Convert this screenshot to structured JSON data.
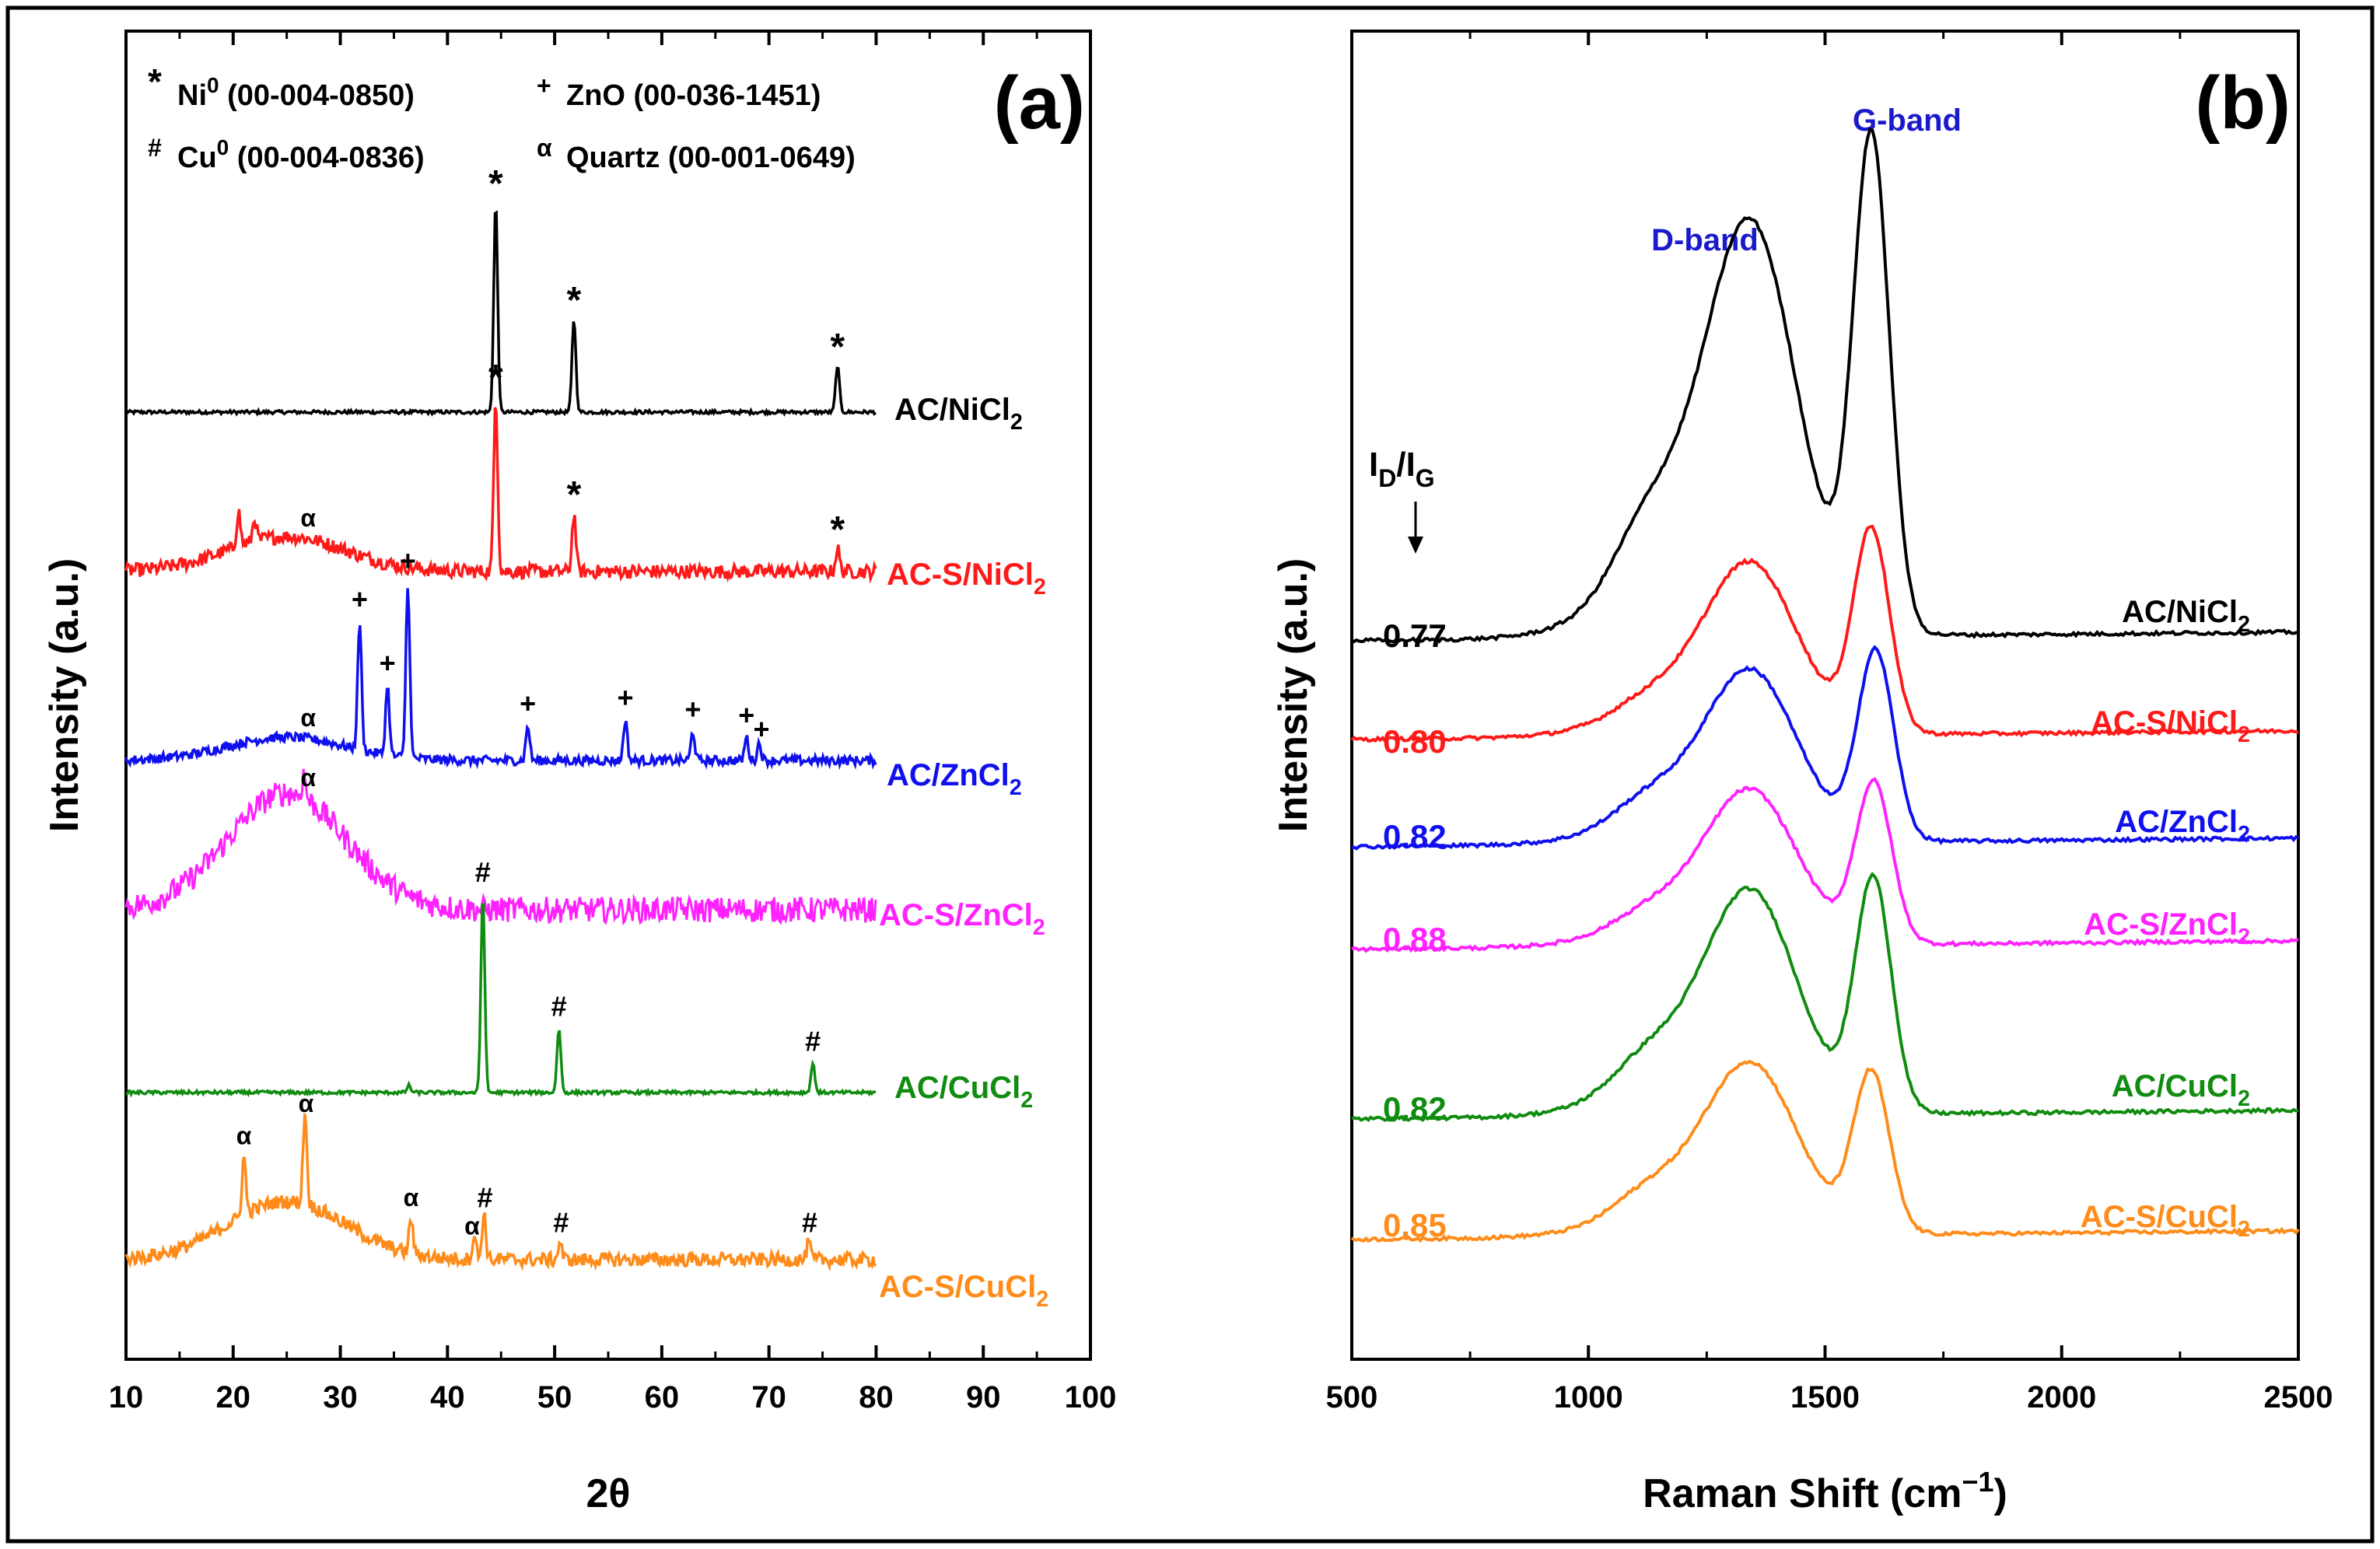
{
  "colors": {
    "black": "#000000",
    "red": "#ff1a1a",
    "blue": "#1010ee",
    "magenta": "#ff22ff",
    "green": "#108c10",
    "orange": "#ff8c1a",
    "bandLabel": "#1a1acc"
  },
  "chart_data": [
    {
      "type": "line",
      "panel_label": "(a)",
      "xlabel": "2θ",
      "ylabel": "Intensity (a.u.)",
      "xlim": [
        10,
        100
      ],
      "xticks": [
        "10",
        "20",
        "30",
        "40",
        "50",
        "60",
        "70",
        "80",
        "90",
        "100"
      ],
      "legend": [
        {
          "symbol": "*",
          "sup": "",
          "name": "Ni",
          "name_sup": "0",
          "ref": "(00-004-0850)"
        },
        {
          "symbol": "+",
          "sup": "",
          "name": "ZnO",
          "name_sup": "",
          "ref": "(00-036-1451)"
        },
        {
          "symbol": "#",
          "sup": "",
          "name": "Cu",
          "name_sup": "0",
          "ref": "(00-004-0836)"
        },
        {
          "symbol": "α",
          "sup": "",
          "name": "Quartz",
          "name_sup": "",
          "ref": "(00-001-0649)"
        }
      ],
      "series": [
        {
          "name": "AC/NiCl",
          "sub": "2",
          "color": "black",
          "baseline": 0.0,
          "hump": 0.0,
          "noise": 0.3,
          "peaks": [
            [
              44.5,
              18
            ],
            [
              51.8,
              8
            ],
            [
              76.4,
              4
            ]
          ],
          "markers": [
            {
              "x": 44.5,
              "s": "*"
            },
            {
              "x": 51.8,
              "s": "*"
            },
            {
              "x": 76.4,
              "s": "*"
            }
          ]
        },
        {
          "name": "AC-S/NiCl",
          "sub": "2",
          "color": "red",
          "baseline": 0.0,
          "hump": 3,
          "noise": 1.2,
          "peaks": [
            [
              20.5,
              3
            ],
            [
              22,
              2
            ],
            [
              44.5,
              15
            ],
            [
              51.8,
              5
            ],
            [
              76.4,
              2
            ]
          ],
          "markers": [
            {
              "x": 27,
              "s": "α"
            },
            {
              "x": 44.5,
              "s": "*"
            },
            {
              "x": 51.8,
              "s": "*"
            },
            {
              "x": 76.4,
              "s": "*"
            }
          ]
        },
        {
          "name": "AC/ZnCl",
          "sub": "2",
          "color": "blue",
          "baseline": 0.0,
          "hump": 2,
          "noise": 0.8,
          "peaks": [
            [
              31.8,
              11
            ],
            [
              34.4,
              6
            ],
            [
              36.3,
              15
            ],
            [
              47.5,
              3
            ],
            [
              56.6,
              3.5
            ],
            [
              62.9,
              2.5
            ],
            [
              67.9,
              2
            ],
            [
              69.1,
              1.5
            ]
          ],
          "markers": [
            {
              "x": 27,
              "s": "α"
            },
            {
              "x": 31.8,
              "s": "+"
            },
            {
              "x": 34.4,
              "s": "+"
            },
            {
              "x": 36.3,
              "s": "+"
            },
            {
              "x": 47.5,
              "s": "+"
            },
            {
              "x": 56.6,
              "s": "+"
            },
            {
              "x": 62.9,
              "s": "+"
            },
            {
              "x": 67.9,
              "s": "+"
            },
            {
              "x": 69.3,
              "s": "+"
            }
          ]
        },
        {
          "name": "AC-S/ZnCl",
          "sub": "2",
          "color": "magenta",
          "baseline": 0.0,
          "hump": 10,
          "noise": 2.2,
          "peaks": [
            [
              26.6,
              2
            ]
          ],
          "markers": [
            {
              "x": 27,
              "s": "α"
            }
          ]
        },
        {
          "name": "AC/CuCl",
          "sub": "2",
          "color": "green",
          "baseline": 0.0,
          "hump": 0.0,
          "noise": 0.3,
          "peaks": [
            [
              43.3,
              17
            ],
            [
              50.4,
              5.5
            ],
            [
              74.1,
              2.5
            ],
            [
              36.4,
              0.6
            ]
          ],
          "markers": [
            {
              "x": 43.3,
              "s": "#"
            },
            {
              "x": 50.4,
              "s": "#"
            },
            {
              "x": 74.1,
              "s": "#"
            }
          ]
        },
        {
          "name": "AC-S/CuCl",
          "sub": "2",
          "color": "orange",
          "baseline": 0.0,
          "hump": 5,
          "noise": 1.2,
          "peaks": [
            [
              21,
              5
            ],
            [
              26.7,
              8
            ],
            [
              36.6,
              3
            ],
            [
              42.5,
              2
            ],
            [
              43.4,
              4
            ],
            [
              50.5,
              1.5
            ],
            [
              73.7,
              1.5
            ]
          ],
          "markers": [
            {
              "x": 21,
              "s": "α"
            },
            {
              "x": 26.8,
              "s": "α"
            },
            {
              "x": 36.6,
              "s": "α"
            },
            {
              "x": 42.3,
              "s": "α"
            },
            {
              "x": 43.5,
              "s": "#"
            },
            {
              "x": 50.6,
              "s": "#"
            },
            {
              "x": 73.8,
              "s": "#"
            }
          ]
        }
      ]
    },
    {
      "type": "line",
      "panel_label": "(b)",
      "xlabel": "Raman Shift (cm",
      "xlabel_sup": "−1",
      "xlabel_tail": ")",
      "ylabel": "Intensity (a.u.)",
      "xlim": [
        500,
        2500
      ],
      "xticks": [
        "500",
        "1000",
        "1500",
        "2000",
        "2500"
      ],
      "ratio_header": {
        "main": "I",
        "sub1": "D",
        "slash": "/I",
        "sub2": "G"
      },
      "band_labels": [
        {
          "text": "D-band",
          "x": 1340
        },
        {
          "text": "G-band",
          "x": 1600
        }
      ],
      "series": [
        {
          "name": "AC/NiCl",
          "sub": "2",
          "color": "black",
          "id_ig": "0.77",
          "d": 24,
          "g": 34,
          "shoulder": 4
        },
        {
          "name": "AC-S/NiCl",
          "sub": "2",
          "color": "red",
          "id_ig": "0.80",
          "d": 10,
          "g": 14,
          "shoulder": 1
        },
        {
          "name": "AC/ZnCl",
          "sub": "2",
          "color": "blue",
          "id_ig": "0.82",
          "d": 10,
          "g": 13,
          "shoulder": 1.5
        },
        {
          "name": "AC-S/ZnCl",
          "sub": "2",
          "color": "magenta",
          "id_ig": "0.88",
          "d": 9,
          "g": 11,
          "shoulder": 1
        },
        {
          "name": "AC/CuCl",
          "sub": "2",
          "color": "green",
          "id_ig": "0.82",
          "d": 13,
          "g": 16,
          "shoulder": 2
        },
        {
          "name": "AC-S/CuCl",
          "sub": "2",
          "color": "orange",
          "id_ig": "0.85",
          "d": 10,
          "g": 11,
          "shoulder": 1.5
        }
      ]
    }
  ]
}
